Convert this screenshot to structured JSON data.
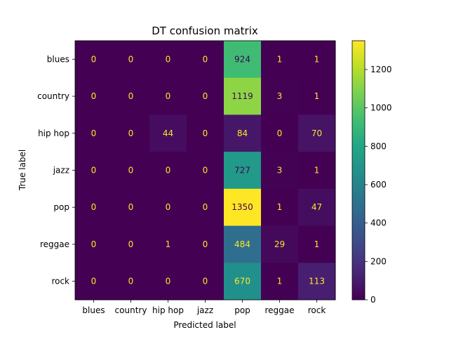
{
  "chart_data": {
    "type": "heatmap",
    "title": "DT confusion matrix",
    "xlabel": "Predicted label",
    "ylabel": "True label",
    "x_categories": [
      "blues",
      "country",
      "hip hop",
      "jazz",
      "pop",
      "reggae",
      "rock"
    ],
    "y_categories": [
      "blues",
      "country",
      "hip hop",
      "jazz",
      "pop",
      "reggae",
      "rock"
    ],
    "values": [
      [
        0,
        0,
        0,
        0,
        924,
        1,
        1
      ],
      [
        0,
        0,
        0,
        0,
        1119,
        3,
        1
      ],
      [
        0,
        0,
        44,
        0,
        84,
        0,
        70
      ],
      [
        0,
        0,
        0,
        0,
        727,
        3,
        1
      ],
      [
        0,
        0,
        0,
        0,
        1350,
        1,
        47
      ],
      [
        0,
        0,
        1,
        0,
        484,
        29,
        1
      ],
      [
        0,
        0,
        0,
        0,
        670,
        1,
        113
      ]
    ],
    "colorscale": "viridis",
    "color_range": [
      0,
      1350
    ],
    "colorbar_ticks": [
      0,
      200,
      400,
      600,
      800,
      1000,
      1200
    ]
  }
}
